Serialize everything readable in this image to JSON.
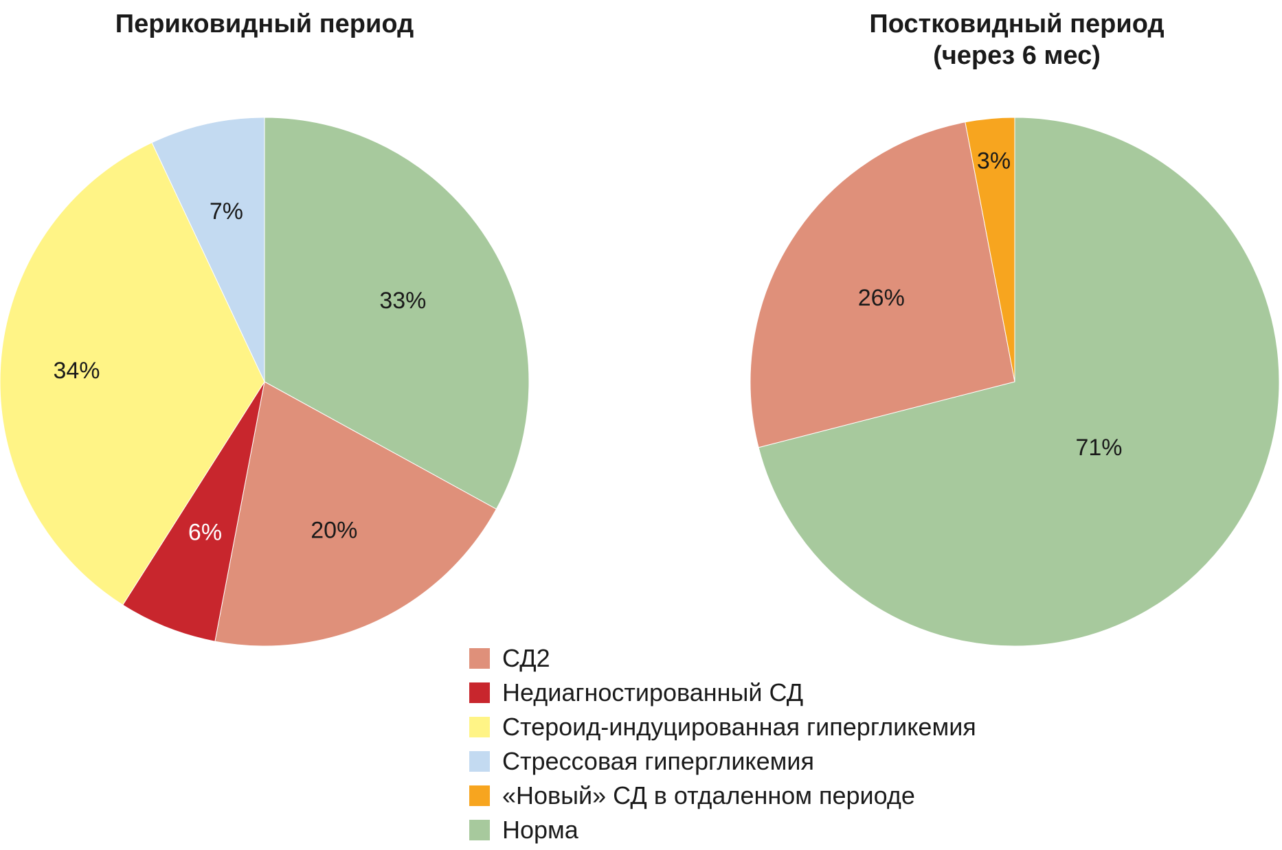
{
  "legend": [
    {
      "label": "СД2",
      "color": "#df907a"
    },
    {
      "label": "Недиагностированный СД",
      "color": "#c8262d"
    },
    {
      "label": "Стероид-индуцированная гипергликемия",
      "color": "#fff486"
    },
    {
      "label": "Стрессовая гипергликемия",
      "color": "#c3daf1"
    },
    {
      "label": "«Новый» СД в отдаленном периоде",
      "color": "#f7a51f"
    },
    {
      "label": "Норма",
      "color": "#a7c99d"
    }
  ],
  "chart_data": [
    {
      "type": "pie",
      "title": "Периковидный период",
      "slices": [
        {
          "category": "Норма",
          "value": 33,
          "label": "33%",
          "color": "#a7c99d",
          "label_color": "#1a1a1a"
        },
        {
          "category": "СД2",
          "value": 20,
          "label": "20%",
          "color": "#df907a",
          "label_color": "#1a1a1a"
        },
        {
          "category": "Недиагностированный СД",
          "value": 6,
          "label": "6%",
          "color": "#c8262d",
          "label_color": "#ffffff"
        },
        {
          "category": "Стероид-индуцированная гипергликемия",
          "value": 34,
          "label": "34%",
          "color": "#fff486",
          "label_color": "#1a1a1a"
        },
        {
          "category": "Стрессовая гипергликемия",
          "value": 7,
          "label": "7%",
          "color": "#c3daf1",
          "label_color": "#1a1a1a"
        }
      ]
    },
    {
      "type": "pie",
      "title": [
        "Постковидный период",
        "(через 6 мес)"
      ],
      "slices": [
        {
          "category": "Норма",
          "value": 71,
          "label": "71%",
          "color": "#a7c99d",
          "label_color": "#1a1a1a"
        },
        {
          "category": "СД2",
          "value": 26,
          "label": "26%",
          "color": "#df907a",
          "label_color": "#1a1a1a"
        },
        {
          "category": "«Новый» СД в отдаленном периоде",
          "value": 3,
          "label": "3%",
          "color": "#f7a51f",
          "label_color": "#1a1a1a"
        }
      ]
    }
  ]
}
